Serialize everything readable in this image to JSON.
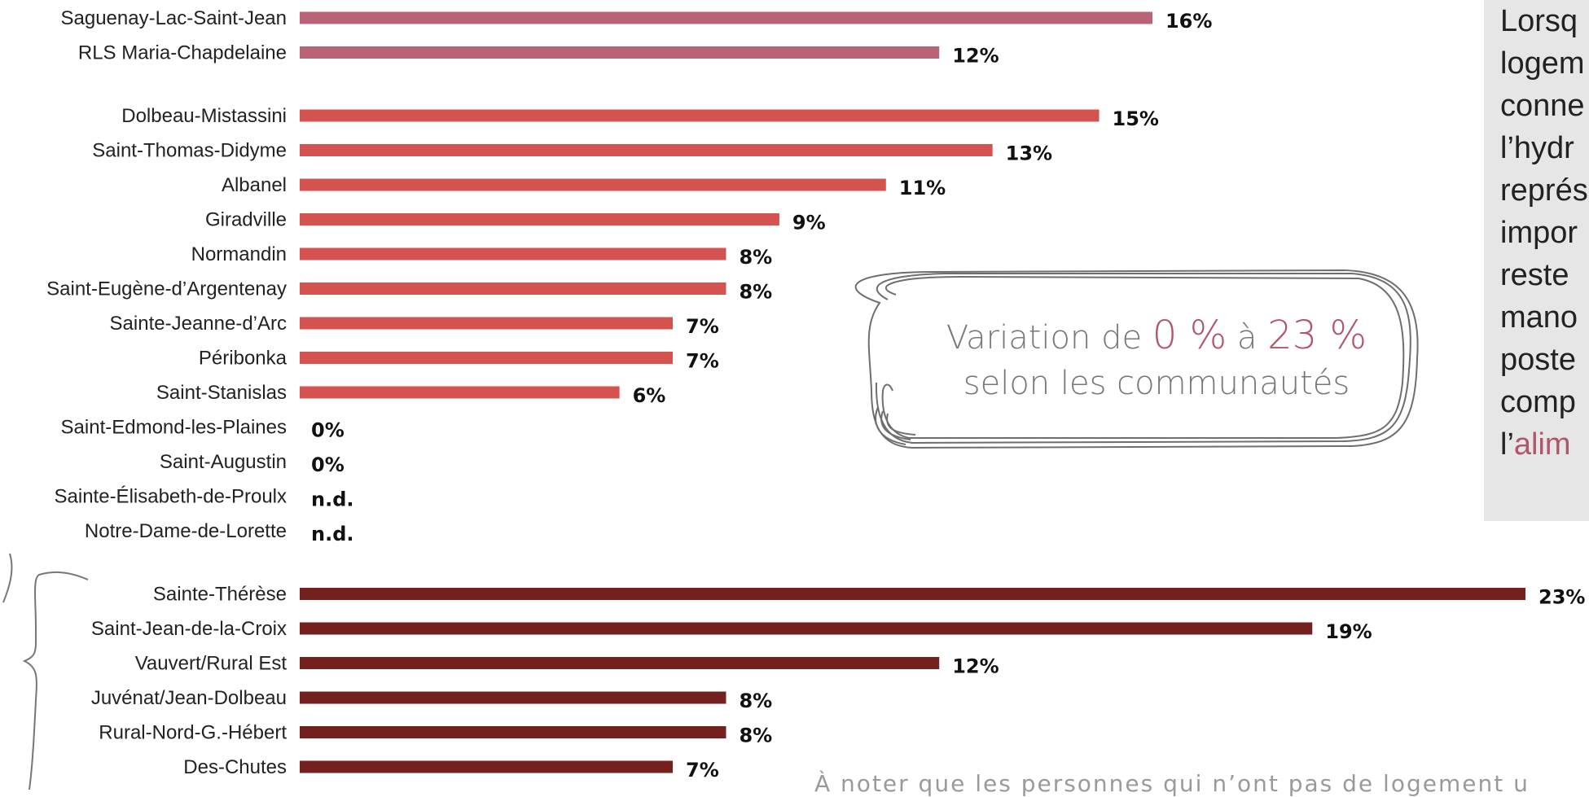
{
  "chart_data": {
    "type": "bar",
    "orientation": "horizontal",
    "xlim": [
      0,
      23
    ],
    "groups": [
      {
        "color": "#b86476",
        "items": [
          {
            "label": "Saguenay-Lac-Saint-Jean",
            "value": 16,
            "display": "16%"
          },
          {
            "label": "RLS Maria-Chapdelaine",
            "value": 12,
            "display": "12%"
          }
        ]
      },
      {
        "color": "#d45351",
        "items": [
          {
            "label": "Dolbeau-Mistassini",
            "value": 15,
            "display": "15%"
          },
          {
            "label": "Saint-Thomas-Didyme",
            "value": 13,
            "display": "13%"
          },
          {
            "label": "Albanel",
            "value": 11,
            "display": "11%"
          },
          {
            "label": "Giradville",
            "value": 9,
            "display": "9%"
          },
          {
            "label": "Normandin",
            "value": 8,
            "display": "8%"
          },
          {
            "label": "Saint-Eugène-d’Argentenay",
            "value": 8,
            "display": "8%"
          },
          {
            "label": "Sainte-Jeanne-d’Arc",
            "value": 7,
            "display": "7%"
          },
          {
            "label": "Péribonka",
            "value": 7,
            "display": "7%"
          },
          {
            "label": "Saint-Stanislas",
            "value": 6,
            "display": "6%"
          },
          {
            "label": "Saint-Edmond-les-Plaines",
            "value": 0,
            "display": "0%"
          },
          {
            "label": "Saint-Augustin",
            "value": 0,
            "display": "0%"
          },
          {
            "label": "Sainte-Élisabeth-de-Proulx",
            "value": null,
            "display": "n.d."
          },
          {
            "label": "Notre-Dame-de-Lorette",
            "value": null,
            "display": "n.d."
          }
        ]
      },
      {
        "color": "#74201e",
        "items": [
          {
            "label": "Sainte-Thérèse",
            "value": 23,
            "display": "23%"
          },
          {
            "label": "Saint-Jean-de-la-Croix",
            "value": 19,
            "display": "19%"
          },
          {
            "label": "Vauvert/Rural Est",
            "value": 12,
            "display": "12%"
          },
          {
            "label": "Juvénat/Jean-Dolbeau",
            "value": 8,
            "display": "8%"
          },
          {
            "label": "Rural-Nord-G.-Hébert",
            "value": 8,
            "display": "8%"
          },
          {
            "label": "Des-Chutes",
            "value": 7,
            "display": "7%"
          }
        ]
      }
    ]
  },
  "callout": {
    "prefix": "Variation de ",
    "low": "0 %",
    "mid": " à ",
    "high": "23 %",
    "line2": "selon les communautés"
  },
  "side_text": {
    "lines": [
      "Lorsq",
      "logem",
      "conne",
      "l’hydr",
      "représ",
      "impor",
      "reste",
      "mano",
      "poste",
      "comp"
    ],
    "last_prefix": "l’",
    "last_highlight": "alim"
  },
  "footnote": "À noter que les personnes qui n’ont pas de logement u"
}
